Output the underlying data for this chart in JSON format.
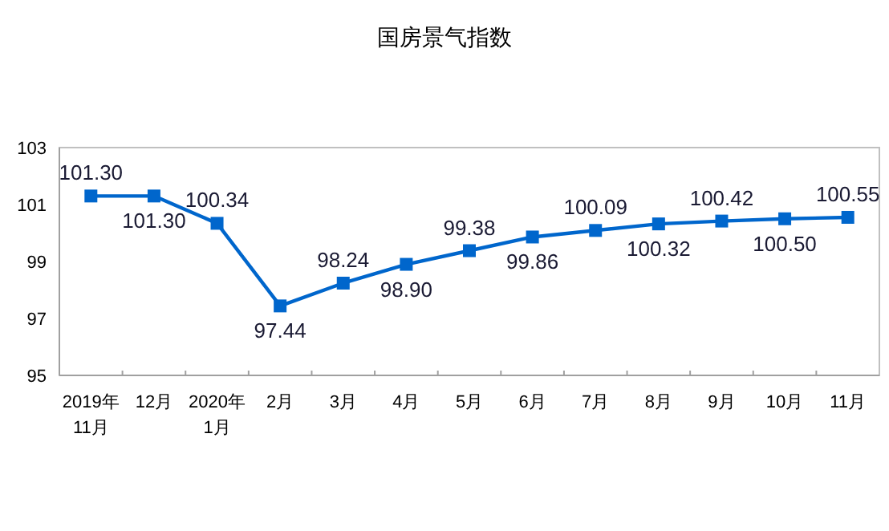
{
  "chart_data": {
    "type": "line",
    "title": "国房景气指数",
    "categories": [
      "2019年\n11月",
      "12月",
      "2020年\n1月",
      "2月",
      "3月",
      "4月",
      "5月",
      "6月",
      "7月",
      "8月",
      "9月",
      "10月",
      "11月"
    ],
    "series": [
      {
        "color": "#0066cc",
        "values": [
          101.3,
          101.3,
          100.34,
          97.44,
          98.24,
          98.9,
          99.38,
          99.86,
          100.09,
          100.32,
          100.42,
          100.5,
          100.55
        ],
        "value_labels": [
          "101.30",
          "101.30",
          "100.34",
          "97.44",
          "98.24",
          "98.90",
          "99.38",
          "99.86",
          "100.09",
          "100.32",
          "100.42",
          "100.50",
          "100.55"
        ]
      }
    ],
    "ylim": [
      95,
      103
    ],
    "yticks": [
      95,
      97,
      99,
      101,
      103
    ],
    "marker": "square",
    "line_style": "solid",
    "grid": false
  }
}
